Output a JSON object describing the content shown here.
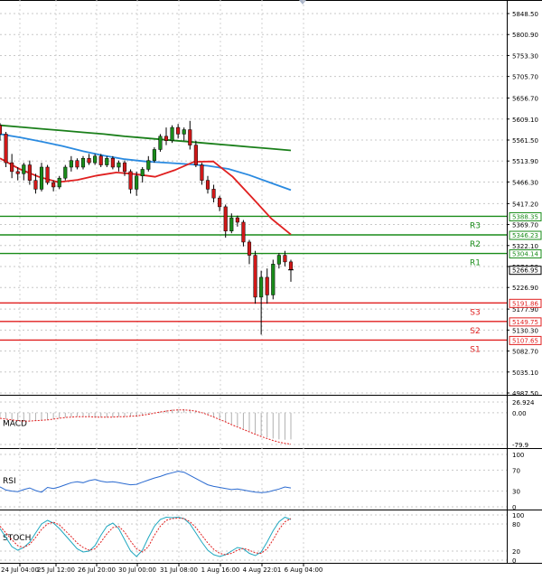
{
  "chart_data": {
    "type": "candlestick",
    "price_axis_ticks": [
      "5848.50",
      "5800.90",
      "5753.30",
      "5705.70",
      "5656.70",
      "5609.10",
      "5561.50",
      "5513.90",
      "5466.30",
      "5417.20",
      "5369.70",
      "5322.10",
      "5274.50",
      "5226.90",
      "5177.90",
      "5130.30",
      "5082.70",
      "5035.10",
      "4987.50"
    ],
    "price_range": [
      4987.5,
      5848.5
    ],
    "current_price": {
      "value": 5266.95,
      "label": "5266.95",
      "color": "#000000"
    },
    "levels": [
      {
        "name": "R3",
        "value": 5388.35,
        "label": "5388.35",
        "color": "#1a8c1a"
      },
      {
        "name": "R2",
        "value": 5346.23,
        "label": "5346.23",
        "color": "#1a8c1a"
      },
      {
        "name": "R1",
        "value": 5304.14,
        "label": "5304.14",
        "color": "#1a8c1a"
      },
      {
        "name": "S3",
        "value": 5191.86,
        "label": "5191.86",
        "color": "#e02020"
      },
      {
        "name": "S2",
        "value": 5149.75,
        "label": "5149.75",
        "color": "#e02020"
      },
      {
        "name": "S1",
        "value": 5107.65,
        "label": "5107.65",
        "color": "#e02020"
      }
    ],
    "x_axis_labels": [
      "24 Jul 04:00",
      "25 Jul 12:00",
      "26 Jul 20:00",
      "30 Jul 00:00",
      "31 Jul 08:00",
      "1 Aug 16:00",
      "4 Aug 22:01",
      "6 Aug 04:00"
    ],
    "candles": [
      [
        5595,
        5600,
        5560,
        5575
      ],
      [
        5575,
        5580,
        5500,
        5510
      ],
      [
        5510,
        5530,
        5475,
        5490
      ],
      [
        5490,
        5500,
        5470,
        5485
      ],
      [
        5485,
        5510,
        5470,
        5505
      ],
      [
        5505,
        5515,
        5460,
        5470
      ],
      [
        5470,
        5485,
        5440,
        5450
      ],
      [
        5450,
        5510,
        5445,
        5500
      ],
      [
        5500,
        5505,
        5460,
        5465
      ],
      [
        5465,
        5470,
        5445,
        5455
      ],
      [
        5455,
        5480,
        5450,
        5475
      ],
      [
        5475,
        5505,
        5470,
        5500
      ],
      [
        5500,
        5525,
        5490,
        5515
      ],
      [
        5515,
        5520,
        5495,
        5500
      ],
      [
        5500,
        5525,
        5495,
        5520
      ],
      [
        5520,
        5530,
        5505,
        5510
      ],
      [
        5510,
        5530,
        5505,
        5525
      ],
      [
        5525,
        5530,
        5500,
        5505
      ],
      [
        5505,
        5525,
        5500,
        5520
      ],
      [
        5520,
        5525,
        5495,
        5500
      ],
      [
        5500,
        5515,
        5490,
        5510
      ],
      [
        5510,
        5515,
        5480,
        5490
      ],
      [
        5490,
        5495,
        5440,
        5450
      ],
      [
        5450,
        5490,
        5435,
        5480
      ],
      [
        5480,
        5500,
        5465,
        5495
      ],
      [
        5495,
        5525,
        5490,
        5515
      ],
      [
        5515,
        5545,
        5510,
        5540
      ],
      [
        5540,
        5575,
        5535,
        5570
      ],
      [
        5570,
        5590,
        5550,
        5560
      ],
      [
        5560,
        5595,
        5555,
        5590
      ],
      [
        5590,
        5598,
        5565,
        5575
      ],
      [
        5575,
        5590,
        5560,
        5585
      ],
      [
        5585,
        5605,
        5540,
        5550
      ],
      [
        5550,
        5560,
        5500,
        5505
      ],
      [
        5505,
        5510,
        5460,
        5470
      ],
      [
        5470,
        5480,
        5440,
        5450
      ],
      [
        5450,
        5460,
        5420,
        5430
      ],
      [
        5430,
        5435,
        5400,
        5410
      ],
      [
        5410,
        5415,
        5340,
        5355
      ],
      [
        5355,
        5395,
        5350,
        5385
      ],
      [
        5385,
        5390,
        5365,
        5375
      ],
      [
        5375,
        5380,
        5320,
        5330
      ],
      [
        5330,
        5335,
        5280,
        5300
      ],
      [
        5300,
        5310,
        5190,
        5205
      ],
      [
        5205,
        5265,
        5120,
        5250
      ],
      [
        5250,
        5270,
        5190,
        5210
      ],
      [
        5210,
        5290,
        5200,
        5280
      ],
      [
        5280,
        5305,
        5270,
        5300
      ],
      [
        5300,
        5310,
        5275,
        5285
      ],
      [
        5285,
        5290,
        5240,
        5267
      ]
    ],
    "ma_series": [
      {
        "color": "#1a7f1a",
        "values": [
          5595,
          5591,
          5587,
          5583,
          5579,
          5575,
          5570,
          5566,
          5562,
          5558,
          5554,
          5550,
          5546,
          5542,
          5538
        ]
      },
      {
        "color": "#2a8ae0",
        "values": [
          5575,
          5567,
          5558,
          5548,
          5536,
          5526,
          5518,
          5513,
          5510,
          5507,
          5503,
          5496,
          5482,
          5465,
          5448
        ]
      },
      {
        "color": "#e02020",
        "values": [
          5520,
          5496,
          5478,
          5466,
          5471,
          5481,
          5488,
          5484,
          5478,
          5493,
          5512,
          5513,
          5478,
          5431,
          5383,
          5347
        ]
      }
    ],
    "macd": {
      "label": "MACD",
      "ticks": [
        "26.924",
        "0.00",
        "-79.9"
      ],
      "range": [
        -79.9,
        26.924
      ],
      "histogram": [
        -12,
        -16,
        -18,
        -20,
        -21,
        -22,
        -21,
        -20,
        -18,
        -16,
        -14,
        -12,
        -10,
        -9,
        -9,
        -10,
        -11,
        -12,
        -12,
        -11,
        -10,
        -10,
        -9,
        -8,
        -6,
        -3,
        0,
        3,
        6,
        8,
        9,
        9,
        8,
        5,
        1,
        -4,
        -10,
        -16,
        -22,
        -28,
        -34,
        -40,
        -46,
        -52,
        -58,
        -62,
        -65,
        -67,
        -68,
        -67
      ],
      "signal": [
        -14,
        -16,
        -18,
        -20,
        -21,
        -21,
        -20,
        -19,
        -18,
        -16,
        -14,
        -12,
        -11,
        -10,
        -10,
        -10,
        -11,
        -11,
        -11,
        -11,
        -10,
        -10,
        -9,
        -8,
        -6,
        -4,
        -1,
        2,
        4,
        6,
        7,
        7,
        6,
        4,
        0,
        -5,
        -11,
        -17,
        -23,
        -30,
        -36,
        -42,
        -48,
        -54,
        -60,
        -65,
        -70,
        -74,
        -77,
        -79
      ]
    },
    "rsi": {
      "label": "RSI",
      "ticks": [
        "100",
        "70",
        "30",
        "0"
      ],
      "range": [
        0,
        100
      ],
      "values": [
        38,
        32,
        30,
        29,
        33,
        36,
        31,
        28,
        37,
        35,
        38,
        42,
        46,
        48,
        46,
        50,
        52,
        49,
        47,
        48,
        46,
        44,
        42,
        43,
        47,
        51,
        55,
        58,
        62,
        65,
        68,
        66,
        60,
        54,
        48,
        42,
        39,
        37,
        35,
        33,
        34,
        32,
        30,
        28,
        27,
        28,
        31,
        34,
        38,
        36
      ]
    },
    "stoch": {
      "label": "STOCH",
      "ticks": [
        "100",
        "80",
        "20",
        "0"
      ],
      "range": [
        0,
        100
      ],
      "k": [
        70,
        50,
        30,
        22,
        28,
        40,
        60,
        80,
        88,
        82,
        70,
        55,
        40,
        25,
        18,
        20,
        32,
        55,
        75,
        82,
        70,
        45,
        20,
        8,
        22,
        50,
        75,
        90,
        95,
        94,
        95,
        92,
        80,
        60,
        40,
        22,
        12,
        8,
        12,
        20,
        28,
        25,
        15,
        10,
        18,
        40,
        65,
        85,
        95,
        90
      ],
      "d": [
        75,
        60,
        45,
        32,
        28,
        35,
        50,
        68,
        80,
        84,
        78,
        65,
        52,
        38,
        28,
        22,
        25,
        40,
        58,
        72,
        75,
        62,
        42,
        25,
        18,
        30,
        55,
        75,
        88,
        92,
        93,
        92,
        85,
        72,
        55,
        38,
        24,
        15,
        12,
        15,
        22,
        26,
        22,
        16,
        15,
        25,
        45,
        68,
        85,
        92
      ]
    }
  }
}
